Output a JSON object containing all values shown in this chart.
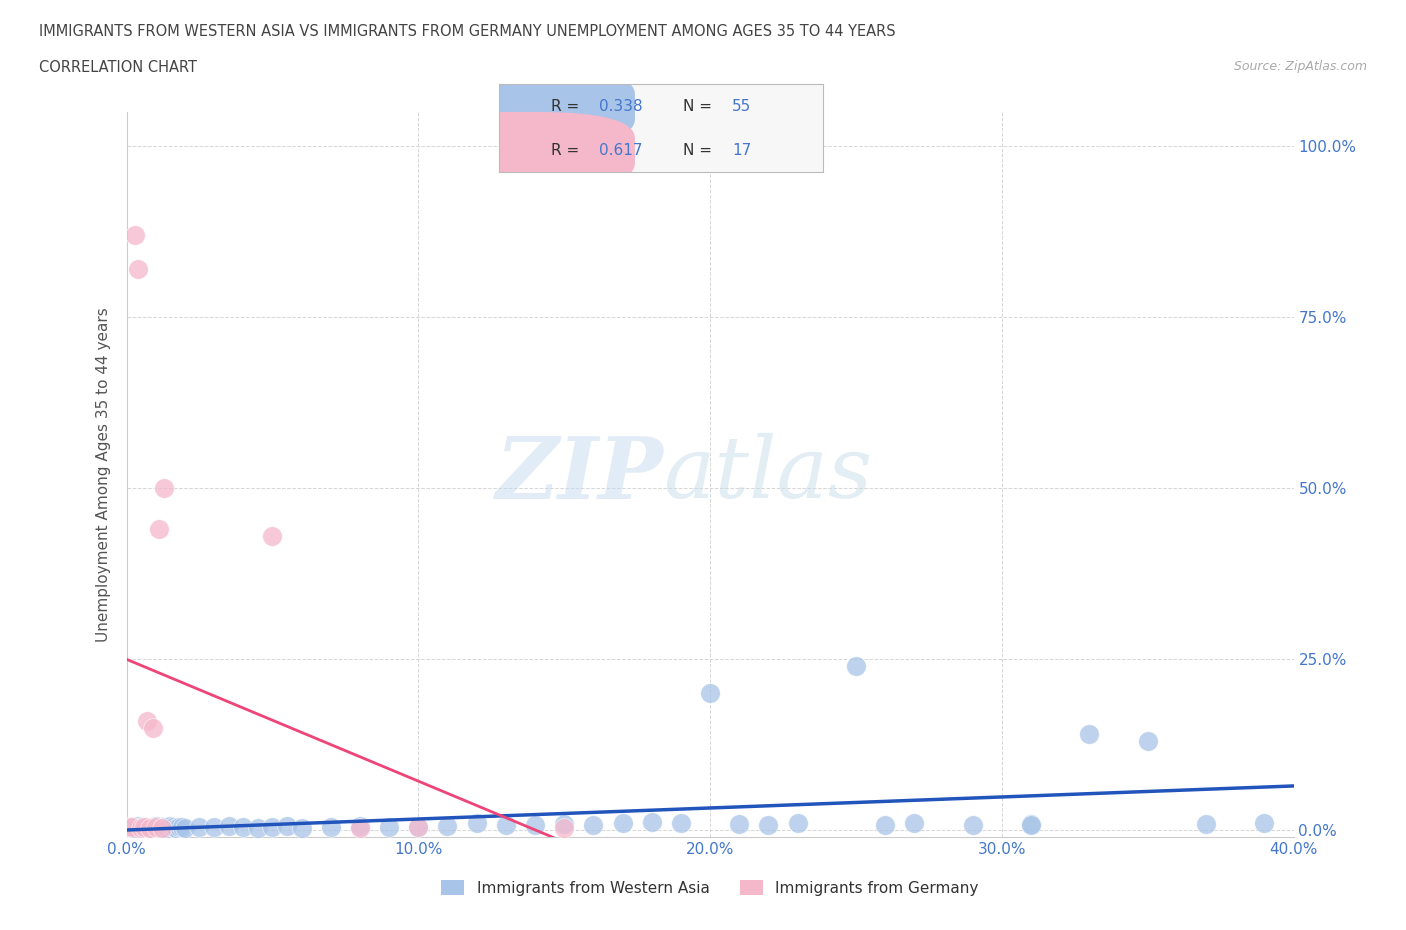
{
  "title_line1": "IMMIGRANTS FROM WESTERN ASIA VS IMMIGRANTS FROM GERMANY UNEMPLOYMENT AMONG AGES 35 TO 44 YEARS",
  "title_line2": "CORRELATION CHART",
  "source_text": "Source: ZipAtlas.com",
  "ylabel": "Unemployment Among Ages 35 to 44 years",
  "xlim": [
    0.0,
    0.4
  ],
  "ylim": [
    -0.01,
    1.05
  ],
  "watermark_zip": "ZIP",
  "watermark_atlas": "atlas",
  "legend_label1": "Immigrants from Western Asia",
  "legend_label2": "Immigrants from Germany",
  "color_blue": "#a8c4e8",
  "color_pink": "#f5b8cb",
  "line_blue": "#2255bb",
  "line_pink": "#ee4477",
  "background": "#ffffff",
  "grid_color": "#cccccc",
  "tick_color": "#4477cc",
  "title_color": "#555555",
  "R1": "0.338",
  "N1": "55",
  "R2": "0.617",
  "N2": "17",
  "blue_x": [
    0.001,
    0.002,
    0.003,
    0.004,
    0.005,
    0.006,
    0.007,
    0.008,
    0.009,
    0.01,
    0.011,
    0.012,
    0.013,
    0.014,
    0.015,
    0.016,
    0.017,
    0.018,
    0.019,
    0.02,
    0.025,
    0.03,
    0.035,
    0.04,
    0.045,
    0.05,
    0.055,
    0.06,
    0.07,
    0.08,
    0.09,
    0.1,
    0.11,
    0.12,
    0.13,
    0.14,
    0.15,
    0.16,
    0.17,
    0.18,
    0.19,
    0.2,
    0.21,
    0.22,
    0.23,
    0.25,
    0.27,
    0.29,
    0.31,
    0.33,
    0.35,
    0.37,
    0.39,
    0.31,
    0.26
  ],
  "blue_y": [
    0.005,
    0.003,
    0.002,
    0.006,
    0.004,
    0.003,
    0.005,
    0.002,
    0.004,
    0.006,
    0.003,
    0.005,
    0.004,
    0.003,
    0.006,
    0.004,
    0.003,
    0.005,
    0.004,
    0.003,
    0.005,
    0.004,
    0.006,
    0.005,
    0.003,
    0.004,
    0.006,
    0.003,
    0.005,
    0.006,
    0.004,
    0.005,
    0.006,
    0.01,
    0.008,
    0.007,
    0.009,
    0.008,
    0.01,
    0.012,
    0.01,
    0.2,
    0.009,
    0.008,
    0.01,
    0.24,
    0.01,
    0.008,
    0.009,
    0.14,
    0.13,
    0.009,
    0.01,
    0.008,
    0.007
  ],
  "pink_x": [
    0.001,
    0.002,
    0.003,
    0.004,
    0.005,
    0.006,
    0.007,
    0.008,
    0.009,
    0.01,
    0.011,
    0.012,
    0.013,
    0.05,
    0.08,
    0.1,
    0.15
  ],
  "pink_y": [
    0.004,
    0.005,
    0.87,
    0.82,
    0.003,
    0.004,
    0.16,
    0.003,
    0.15,
    0.004,
    0.44,
    0.003,
    0.5,
    0.43,
    0.003,
    0.004,
    0.003
  ]
}
